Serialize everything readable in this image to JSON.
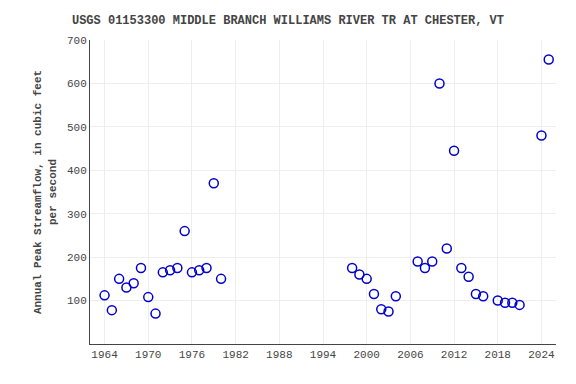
{
  "chart_data": {
    "type": "scatter",
    "title": "USGS 01153300 MIDDLE BRANCH WILLIAMS RIVER TR AT CHESTER, VT",
    "ylabel": "Annual Peak Streamflow, in cubic feet\nper second",
    "x": [
      1964,
      1965,
      1966,
      1967,
      1968,
      1969,
      1970,
      1971,
      1972,
      1973,
      1974,
      1975,
      1976,
      1977,
      1978,
      1979,
      1980,
      1998,
      1999,
      2000,
      2001,
      2002,
      2003,
      2004,
      2007,
      2008,
      2009,
      2010,
      2011,
      2012,
      2013,
      2014,
      2015,
      2016,
      2018,
      2019,
      2020,
      2021,
      2024,
      2025
    ],
    "values": [
      112,
      78,
      150,
      130,
      140,
      175,
      108,
      70,
      165,
      170,
      175,
      260,
      165,
      170,
      175,
      370,
      150,
      175,
      160,
      150,
      115,
      80,
      75,
      110,
      190,
      175,
      190,
      600,
      220,
      445,
      175,
      155,
      115,
      110,
      100,
      95,
      95,
      90,
      480,
      655
    ],
    "xlim": [
      1962,
      2026
    ],
    "ylim": [
      0,
      700
    ],
    "xticks": [
      1964,
      1970,
      1976,
      1982,
      1988,
      1994,
      2000,
      2006,
      2012,
      2018,
      2024
    ],
    "yticks": [
      100,
      200,
      300,
      400,
      500,
      600,
      700
    ],
    "color": "#0000cc",
    "marker": "circle-open",
    "grid": true
  }
}
